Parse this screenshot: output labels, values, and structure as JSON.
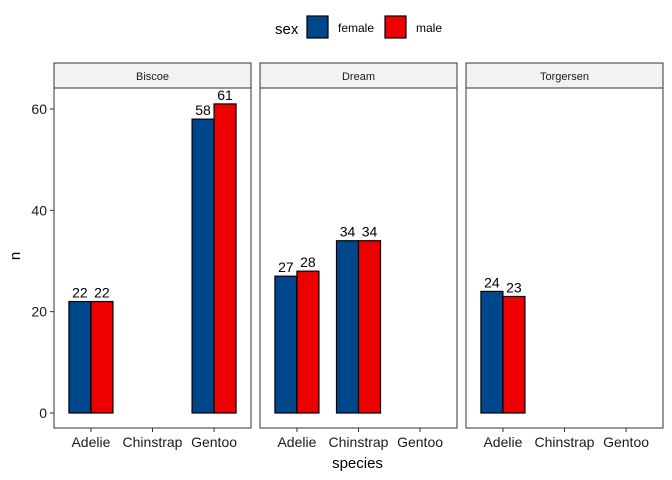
{
  "chart_data": {
    "type": "bar",
    "facet_variable": "island",
    "facets": [
      "Biscoe",
      "Dream",
      "Torgersen"
    ],
    "categories": [
      "Adelie",
      "Chinstrap",
      "Gentoo"
    ],
    "series": [
      {
        "name": "female",
        "color": "#00468B",
        "values": {
          "Biscoe": [
            22,
            null,
            58
          ],
          "Dream": [
            27,
            34,
            null
          ],
          "Torgersen": [
            24,
            null,
            null
          ]
        }
      },
      {
        "name": "male",
        "color": "#ED0000",
        "values": {
          "Biscoe": [
            22,
            null,
            61
          ],
          "Dream": [
            28,
            34,
            null
          ],
          "Torgersen": [
            23,
            null,
            null
          ]
        }
      }
    ],
    "xlabel": "species",
    "ylabel": "n",
    "ylim": [
      0,
      64
    ],
    "yticks": [
      0,
      20,
      40,
      60
    ],
    "legend": {
      "title": "sex",
      "position": "top"
    },
    "grid": false,
    "data_labels": true
  }
}
